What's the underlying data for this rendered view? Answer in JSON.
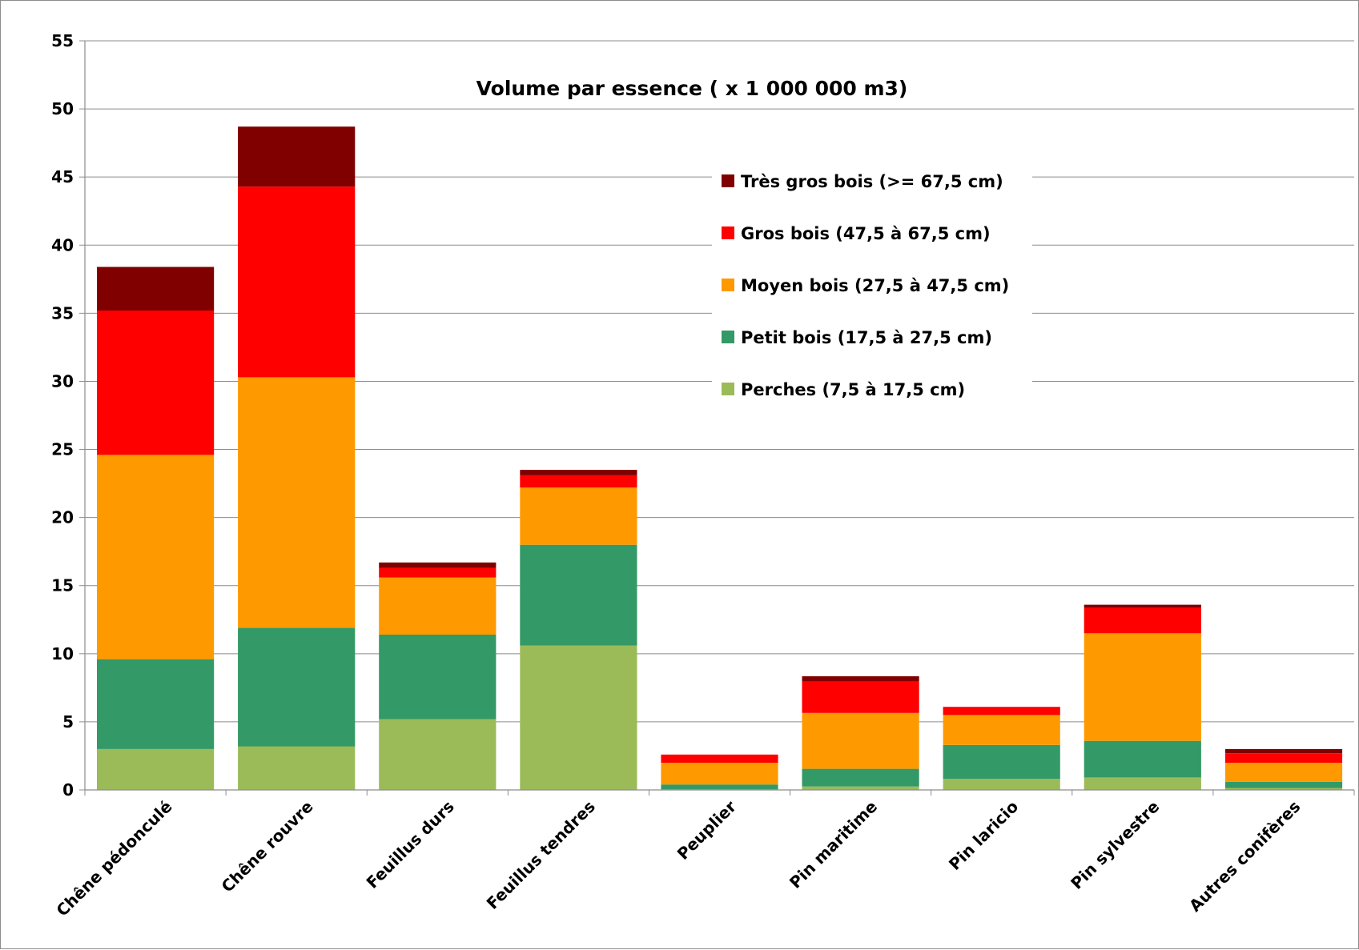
{
  "chart_data": {
    "type": "bar",
    "stacked": true,
    "title": "Volume par essence ( x 1 000 000 m3)",
    "xlabel": "",
    "ylabel": "",
    "ylim": [
      0,
      55
    ],
    "yticks": [
      "0",
      "5",
      "10",
      "15",
      "20",
      "25",
      "30",
      "35",
      "40",
      "45",
      "50",
      "55"
    ],
    "grid": true,
    "legend_position": "top-right",
    "categories": [
      "Chêne pédonculé",
      "Chêne rouvre",
      "Feuillus durs",
      "Feuillus tendres",
      "Peuplier",
      "Pin maritime",
      "Pin laricio",
      "Pin sylvestre",
      "Autres conifères"
    ],
    "series": [
      {
        "name": "Perches (7,5 à 17,5 cm)",
        "color": "#9bbb59",
        "values": [
          3.0,
          3.2,
          5.2,
          10.6,
          0.05,
          0.25,
          0.8,
          0.9,
          0.15
        ]
      },
      {
        "name": "Petit bois (17,5 à 27,5 cm)",
        "color": "#339966",
        "values": [
          6.6,
          8.7,
          6.2,
          7.4,
          0.35,
          1.3,
          2.5,
          2.7,
          0.45
        ]
      },
      {
        "name": "Moyen bois (27,5 à 47,5 cm)",
        "color": "#ff9900",
        "values": [
          15.0,
          18.4,
          4.2,
          4.2,
          1.6,
          4.1,
          2.2,
          7.9,
          1.4
        ]
      },
      {
        "name": "Gros bois (47,5 à 67,5 cm)",
        "color": "#ff0000",
        "values": [
          10.6,
          14.0,
          0.7,
          0.9,
          0.6,
          2.3,
          0.6,
          1.9,
          0.7
        ]
      },
      {
        "name": "Très gros bois (>= 67,5 cm)",
        "color": "#800000",
        "values": [
          3.2,
          4.4,
          0.4,
          0.4,
          0.0,
          0.4,
          0.0,
          0.2,
          0.3
        ]
      }
    ]
  }
}
